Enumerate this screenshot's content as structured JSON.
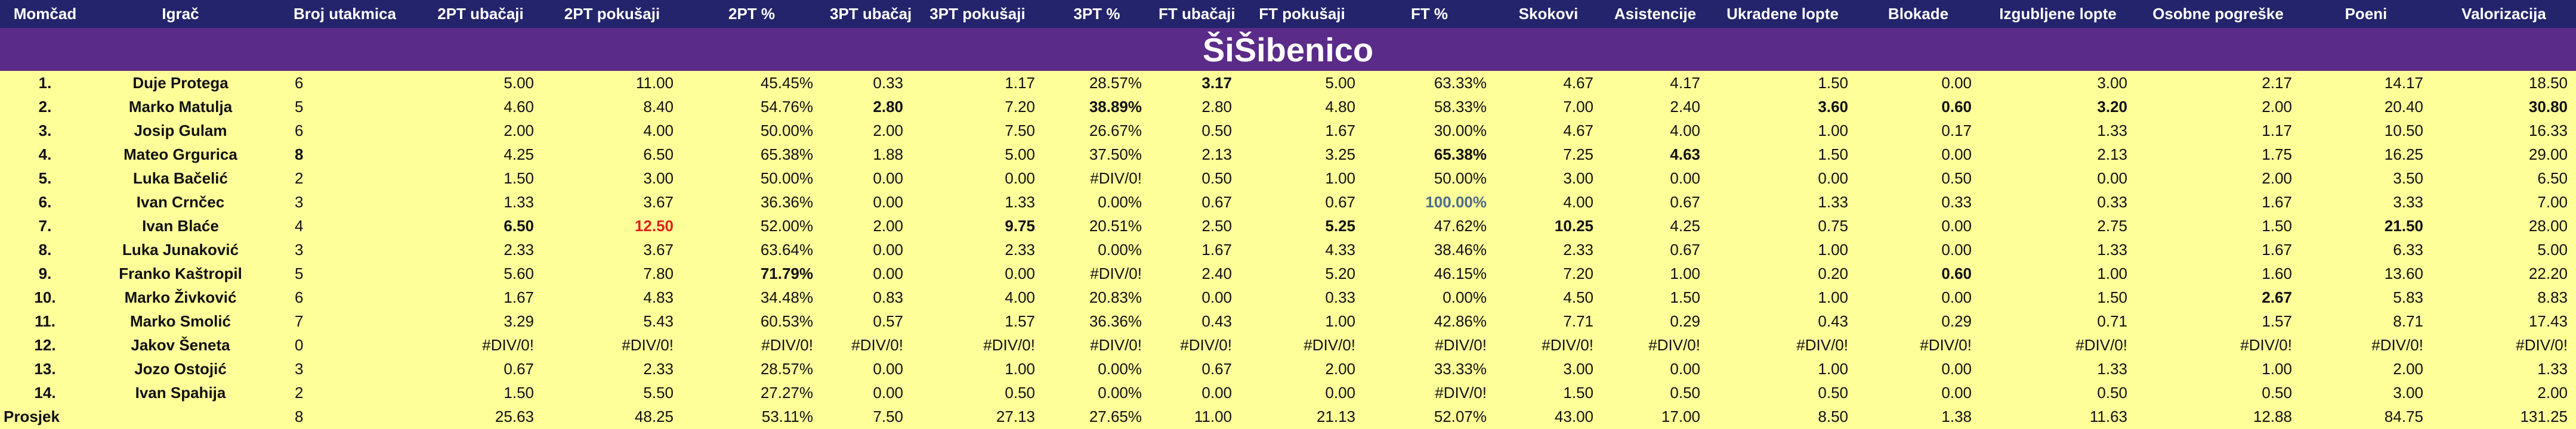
{
  "table": {
    "header": [
      "Momčad",
      "Igrač",
      "Broj utakmica",
      "2PT ubačaji",
      "2PT pokušaji",
      "2PT %",
      "3PT ubačaji",
      "3PT pokušaji",
      "3PT %",
      "FT ubačaji",
      "FT pokušaji",
      "FT %",
      "Skokovi",
      "Asistencije",
      "Ukradene lopte",
      "Blokade",
      "Izgubljene lopte",
      "Osobne pogreške",
      "Poeni",
      "Valorizacija"
    ],
    "title": "ŠiŠibenico",
    "rows": [
      {
        "cells": [
          "1.",
          "Duje Protega",
          "6",
          "5.00",
          "11.00",
          "45.45%",
          "0.33",
          "1.17",
          "28.57%",
          "3.17",
          "5.00",
          "63.33%",
          "4.67",
          "4.17",
          "1.50",
          "0.00",
          "3.00",
          "2.17",
          "14.17",
          "18.50"
        ]
      },
      {
        "cells": [
          "2.",
          "Marko Matulja",
          "5",
          "4.60",
          "8.40",
          "54.76%",
          "2.80",
          "7.20",
          "38.89%",
          "2.80",
          "4.80",
          "58.33%",
          "7.00",
          "2.40",
          "3.60",
          "0.60",
          "3.20",
          "2.00",
          "20.40",
          "30.80"
        ]
      },
      {
        "cells": [
          "3.",
          "Josip Gulam",
          "6",
          "2.00",
          "4.00",
          "50.00%",
          "2.00",
          "7.50",
          "26.67%",
          "0.50",
          "1.67",
          "30.00%",
          "4.67",
          "4.00",
          "1.00",
          "0.17",
          "1.33",
          "1.17",
          "10.50",
          "16.33"
        ]
      },
      {
        "cells": [
          "4.",
          "Mateo Grgurica",
          "8",
          "4.25",
          "6.50",
          "65.38%",
          "1.88",
          "5.00",
          "37.50%",
          "2.13",
          "3.25",
          "65.38%",
          "7.25",
          "4.63",
          "1.50",
          "0.00",
          "2.13",
          "1.75",
          "16.25",
          "29.00"
        ]
      },
      {
        "cells": [
          "5.",
          "Luka Bačelić",
          "2",
          "1.50",
          "3.00",
          "50.00%",
          "0.00",
          "0.00",
          "#DIV/0!",
          "0.50",
          "1.00",
          "50.00%",
          "3.00",
          "0.00",
          "0.00",
          "0.50",
          "0.00",
          "2.00",
          "3.50",
          "6.50"
        ]
      },
      {
        "cells": [
          "6.",
          "Ivan Crnčec",
          "3",
          "1.33",
          "3.67",
          "36.36%",
          "0.00",
          "1.33",
          "0.00%",
          "0.67",
          "0.67",
          "100.00%",
          "4.00",
          "0.67",
          "1.33",
          "0.33",
          "0.33",
          "1.67",
          "3.33",
          "7.00"
        ]
      },
      {
        "cells": [
          "7.",
          "Ivan Blaće",
          "4",
          "6.50",
          "12.50",
          "52.00%",
          "2.00",
          "9.75",
          "20.51%",
          "2.50",
          "5.25",
          "47.62%",
          "10.25",
          "4.25",
          "0.75",
          "0.00",
          "2.75",
          "1.50",
          "21.50",
          "28.00"
        ]
      },
      {
        "cells": [
          "8.",
          "Luka Junaković",
          "3",
          "2.33",
          "3.67",
          "63.64%",
          "0.00",
          "2.33",
          "0.00%",
          "1.67",
          "4.33",
          "38.46%",
          "2.33",
          "0.67",
          "1.00",
          "0.00",
          "1.33",
          "1.67",
          "6.33",
          "5.00"
        ]
      },
      {
        "cells": [
          "9.",
          "Franko Kaštropil",
          "5",
          "5.60",
          "7.80",
          "71.79%",
          "0.00",
          "0.00",
          "#DIV/0!",
          "2.40",
          "5.20",
          "46.15%",
          "7.20",
          "1.00",
          "0.20",
          "0.60",
          "1.00",
          "1.60",
          "13.60",
          "22.20"
        ]
      },
      {
        "cells": [
          "10.",
          "Marko Živković",
          "6",
          "1.67",
          "4.83",
          "34.48%",
          "0.83",
          "4.00",
          "20.83%",
          "0.00",
          "0.33",
          "0.00%",
          "4.50",
          "1.50",
          "1.00",
          "0.00",
          "1.50",
          "2.67",
          "5.83",
          "8.83"
        ]
      },
      {
        "cells": [
          "11.",
          "Marko Smolić",
          "7",
          "3.29",
          "5.43",
          "60.53%",
          "0.57",
          "1.57",
          "36.36%",
          "0.43",
          "1.00",
          "42.86%",
          "7.71",
          "0.29",
          "0.43",
          "0.29",
          "0.71",
          "1.57",
          "8.71",
          "17.43"
        ]
      },
      {
        "cells": [
          "12.",
          "Jakov Šeneta",
          "0",
          "#DIV/0!",
          "#DIV/0!",
          "#DIV/0!",
          "#DIV/0!",
          "#DIV/0!",
          "#DIV/0!",
          "#DIV/0!",
          "#DIV/0!",
          "#DIV/0!",
          "#DIV/0!",
          "#DIV/0!",
          "#DIV/0!",
          "#DIV/0!",
          "#DIV/0!",
          "#DIV/0!",
          "#DIV/0!",
          "#DIV/0!"
        ]
      },
      {
        "cells": [
          "13.",
          "Jozo Ostojić",
          "3",
          "0.67",
          "2.33",
          "28.57%",
          "0.00",
          "1.00",
          "0.00%",
          "0.67",
          "2.00",
          "33.33%",
          "3.00",
          "0.00",
          "1.00",
          "0.00",
          "1.33",
          "1.00",
          "2.00",
          "1.33"
        ]
      },
      {
        "cells": [
          "14.",
          "Ivan Spahija",
          "2",
          "1.50",
          "5.50",
          "27.27%",
          "0.00",
          "0.50",
          "0.00%",
          "0.00",
          "0.00",
          "#DIV/0!",
          "1.50",
          "0.50",
          "0.50",
          "0.00",
          "0.50",
          "0.50",
          "3.00",
          "2.00"
        ]
      },
      {
        "cells": [
          "Prosjek",
          null,
          "8",
          "25.63",
          "48.25",
          "53.11%",
          "7.50",
          "27.13",
          "27.65%",
          "11.00",
          "21.13",
          "52.07%",
          "43.00",
          "17.00",
          "8.50",
          "1.38",
          "11.63",
          "12.88",
          "84.75",
          "131.25"
        ]
      }
    ],
    "emphasis": [
      {
        "row": 0,
        "col": 9
      },
      {
        "row": 1,
        "col": 6
      },
      {
        "row": 1,
        "col": 8
      },
      {
        "row": 1,
        "col": 14
      },
      {
        "row": 1,
        "col": 15
      },
      {
        "row": 1,
        "col": 16
      },
      {
        "row": 1,
        "col": 19
      },
      {
        "row": 3,
        "col": 2
      },
      {
        "row": 3,
        "col": 11
      },
      {
        "row": 3,
        "col": 13
      },
      {
        "row": 5,
        "col": 11,
        "color": "#4f6b8a"
      },
      {
        "row": 6,
        "col": 3
      },
      {
        "row": 6,
        "col": 4,
        "color": "#e02020"
      },
      {
        "row": 6,
        "col": 7
      },
      {
        "row": 6,
        "col": 10
      },
      {
        "row": 6,
        "col": 12
      },
      {
        "row": 6,
        "col": 18
      },
      {
        "row": 8,
        "col": 5
      },
      {
        "row": 8,
        "col": 15
      },
      {
        "row": 9,
        "col": 17
      }
    ]
  }
}
